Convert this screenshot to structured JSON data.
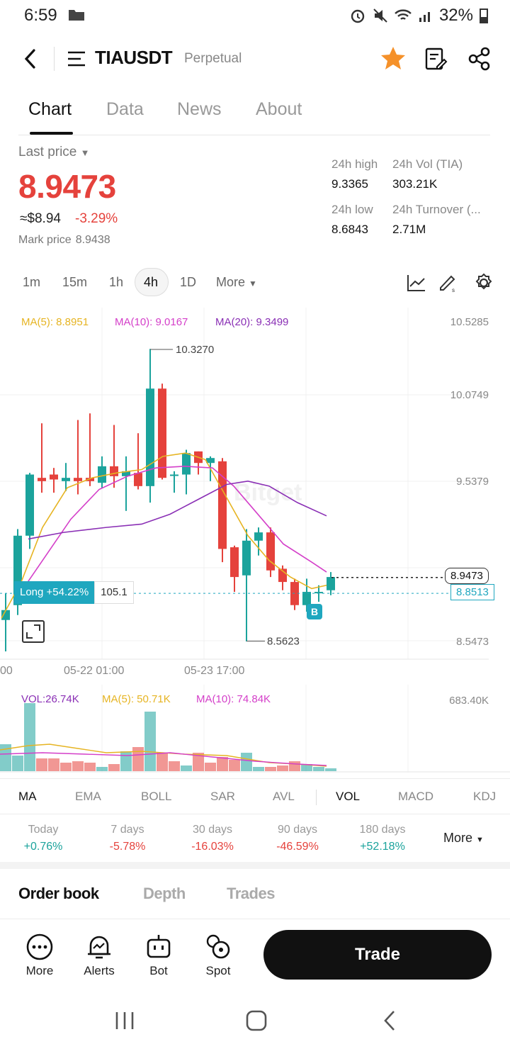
{
  "status": {
    "time": "6:59",
    "battery": "32%"
  },
  "header": {
    "pair": "TIAUSDT",
    "type": "Perpetual"
  },
  "tabs": [
    {
      "label": "Chart",
      "active": true
    },
    {
      "label": "Data",
      "active": false
    },
    {
      "label": "News",
      "active": false
    },
    {
      "label": "About",
      "active": false
    }
  ],
  "price": {
    "last_label": "Last price",
    "last": "8.9473",
    "approx": "≈$8.94",
    "change": "-3.29%",
    "mark_label": "Mark price",
    "mark": "8.9438"
  },
  "stats": {
    "high_label": "24h high",
    "high": "9.3365",
    "vol_label": "24h Vol (TIA)",
    "vol": "303.21K",
    "low_label": "24h low",
    "low": "8.6843",
    "turnover_label": "24h Turnover (...",
    "turnover": "2.71M"
  },
  "intervals": [
    "1m",
    "15m",
    "1h",
    "4h",
    "1D"
  ],
  "interval_more": "More",
  "active_interval": "4h",
  "chart": {
    "ma5": "MA(5): 8.8951",
    "ma10": "MA(10): 9.0167",
    "ma20": "MA(20): 9.3499",
    "y_labels": [
      "10.5285",
      "10.0749",
      "9.5379",
      "8.8513",
      "8.5473"
    ],
    "high_mark": "10.3270",
    "low_mark": "8.5623",
    "current_tag": "8.9473",
    "mark_tag": "8.8513",
    "position_label": "Long +54.22%",
    "position_qty": "105.1",
    "x_labels": [
      "00",
      "05-22 01:00",
      "05-23 17:00"
    ],
    "buy_marker": "B",
    "watermark": "Bitget"
  },
  "volume": {
    "vol": "VOL:26.74K",
    "ma5": "MA(5): 50.71K",
    "ma10": "MA(10): 74.84K",
    "max": "683.40K"
  },
  "indicators": [
    "MA",
    "EMA",
    "BOLL",
    "SAR",
    "AVL",
    "VOL",
    "MACD",
    "KDJ"
  ],
  "performance": [
    {
      "label": "Today",
      "value": "+0.76%",
      "up": true
    },
    {
      "label": "7 days",
      "value": "-5.78%",
      "up": false
    },
    {
      "label": "30 days",
      "value": "-16.03%",
      "up": false
    },
    {
      "label": "90 days",
      "value": "-46.59%",
      "up": false
    },
    {
      "label": "180 days",
      "value": "+52.18%",
      "up": true
    }
  ],
  "perf_more": "More",
  "book_tabs": [
    "Order book",
    "Depth",
    "Trades"
  ],
  "bottom": {
    "more": "More",
    "alerts": "Alerts",
    "bot": "Bot",
    "spot": "Spot",
    "trade": "Trade"
  },
  "colors": {
    "up": "#1ba39c",
    "down": "#e5423c",
    "ma5": "#e6b422",
    "ma10": "#d43fc9",
    "ma20": "#8a2fb5",
    "star": "#f5912a"
  }
}
